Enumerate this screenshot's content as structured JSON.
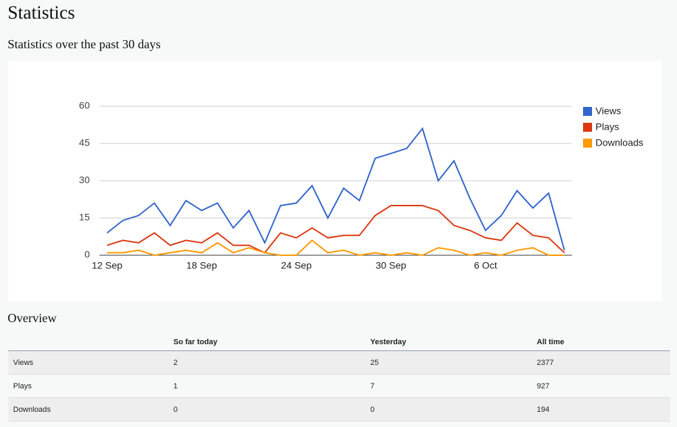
{
  "header": {
    "title": "Statistics"
  },
  "chart_data": {
    "type": "line",
    "title": "Statistics over the past 30 days",
    "categories": [
      "12 Sep",
      null,
      null,
      null,
      null,
      null,
      "18 Sep",
      null,
      null,
      null,
      null,
      null,
      "24 Sep",
      null,
      null,
      null,
      null,
      null,
      "30 Sep",
      null,
      null,
      null,
      null,
      null,
      "6 Oct",
      null,
      null,
      null,
      null,
      null
    ],
    "series": [
      {
        "name": "Views",
        "color": "#3366cc",
        "values": [
          9,
          14,
          16,
          21,
          12,
          22,
          18,
          21,
          11,
          18,
          5,
          20,
          21,
          28,
          15,
          27,
          22,
          39,
          41,
          43,
          51,
          30,
          38,
          23,
          10,
          16,
          26,
          19,
          25,
          2
        ]
      },
      {
        "name": "Plays",
        "color": "#dc3912",
        "values": [
          4,
          6,
          5,
          9,
          4,
          6,
          5,
          9,
          4,
          4,
          1,
          9,
          7,
          11,
          7,
          8,
          8,
          16,
          20,
          20,
          20,
          18,
          12,
          10,
          7,
          6,
          13,
          8,
          7,
          1
        ]
      },
      {
        "name": "Downloads",
        "color": "#ff9900",
        "values": [
          1,
          1,
          2,
          0,
          1,
          2,
          1,
          5,
          1,
          3,
          1,
          0,
          0,
          6,
          1,
          2,
          0,
          1,
          0,
          1,
          0,
          3,
          2,
          0,
          1,
          0,
          2,
          3,
          0,
          0
        ]
      }
    ],
    "ylim": [
      0,
      60
    ],
    "yticks": [
      0,
      15,
      30,
      45,
      60
    ],
    "grid": true,
    "legend": "right"
  },
  "overview": {
    "title": "Overview",
    "columns": [
      "So far today",
      "Yesterday",
      "All time"
    ],
    "rows": [
      [
        "Views",
        2,
        25,
        2377
      ],
      [
        "Plays",
        1,
        7,
        927
      ],
      [
        "Downloads",
        0,
        0,
        194
      ]
    ]
  }
}
